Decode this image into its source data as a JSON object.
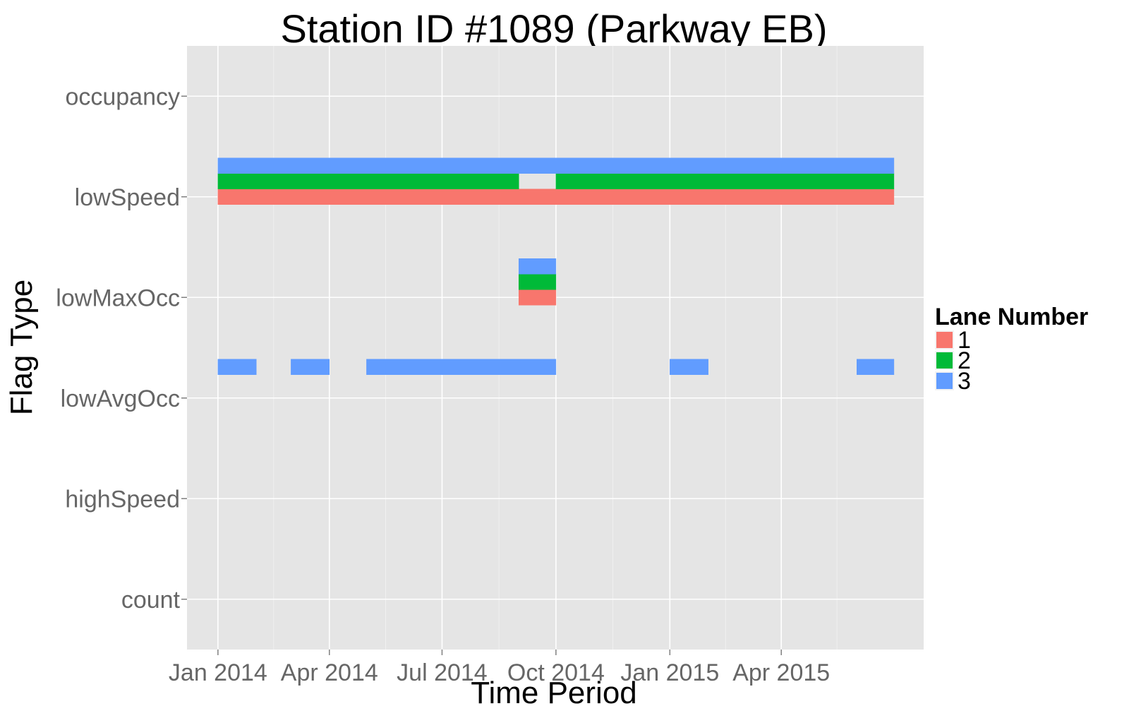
{
  "chart_data": {
    "type": "bar",
    "title": "Station ID #1089 (Parkway EB)",
    "xlabel": "Time Period",
    "ylabel": "Flag Type",
    "x_ticks": [
      {
        "date": "2014-01-01",
        "label": "Jan 2014"
      },
      {
        "date": "2014-04-01",
        "label": "Apr 2014"
      },
      {
        "date": "2014-07-01",
        "label": "Jul 2014"
      },
      {
        "date": "2014-10-01",
        "label": "Oct 2014"
      },
      {
        "date": "2015-01-01",
        "label": "Jan 2015"
      },
      {
        "date": "2015-04-01",
        "label": "Apr 2015"
      }
    ],
    "xlim": [
      "2013-12-07",
      "2015-07-25"
    ],
    "categories": [
      "count",
      "highSpeed",
      "lowAvgOcc",
      "lowMaxOcc",
      "lowSpeed",
      "occupancy"
    ],
    "legend_title": "Lane Number",
    "legend_position": "right",
    "grid": true,
    "series": [
      {
        "name": "1",
        "color": "#F8766D"
      },
      {
        "name": "2",
        "color": "#00BA38"
      },
      {
        "name": "3",
        "color": "#619CFF"
      }
    ],
    "flags": [
      {
        "lane": "1",
        "category": "lowSpeed",
        "start": "2014-01-01",
        "end": "2015-07-01"
      },
      {
        "lane": "2",
        "category": "lowSpeed",
        "start": "2014-01-01",
        "end": "2014-09-01"
      },
      {
        "lane": "2",
        "category": "lowSpeed",
        "start": "2014-10-01",
        "end": "2015-07-01"
      },
      {
        "lane": "3",
        "category": "lowSpeed",
        "start": "2014-01-01",
        "end": "2015-07-01"
      },
      {
        "lane": "1",
        "category": "lowMaxOcc",
        "start": "2014-09-01",
        "end": "2014-10-01"
      },
      {
        "lane": "2",
        "category": "lowMaxOcc",
        "start": "2014-09-01",
        "end": "2014-10-01"
      },
      {
        "lane": "3",
        "category": "lowMaxOcc",
        "start": "2014-09-01",
        "end": "2014-10-01"
      },
      {
        "lane": "3",
        "category": "lowAvgOcc",
        "start": "2014-01-01",
        "end": "2014-02-01"
      },
      {
        "lane": "3",
        "category": "lowAvgOcc",
        "start": "2014-03-01",
        "end": "2014-04-01"
      },
      {
        "lane": "3",
        "category": "lowAvgOcc",
        "start": "2014-05-01",
        "end": "2014-10-01"
      },
      {
        "lane": "3",
        "category": "lowAvgOcc",
        "start": "2015-01-01",
        "end": "2015-02-01"
      },
      {
        "lane": "3",
        "category": "lowAvgOcc",
        "start": "2015-06-01",
        "end": "2015-07-01"
      }
    ]
  }
}
